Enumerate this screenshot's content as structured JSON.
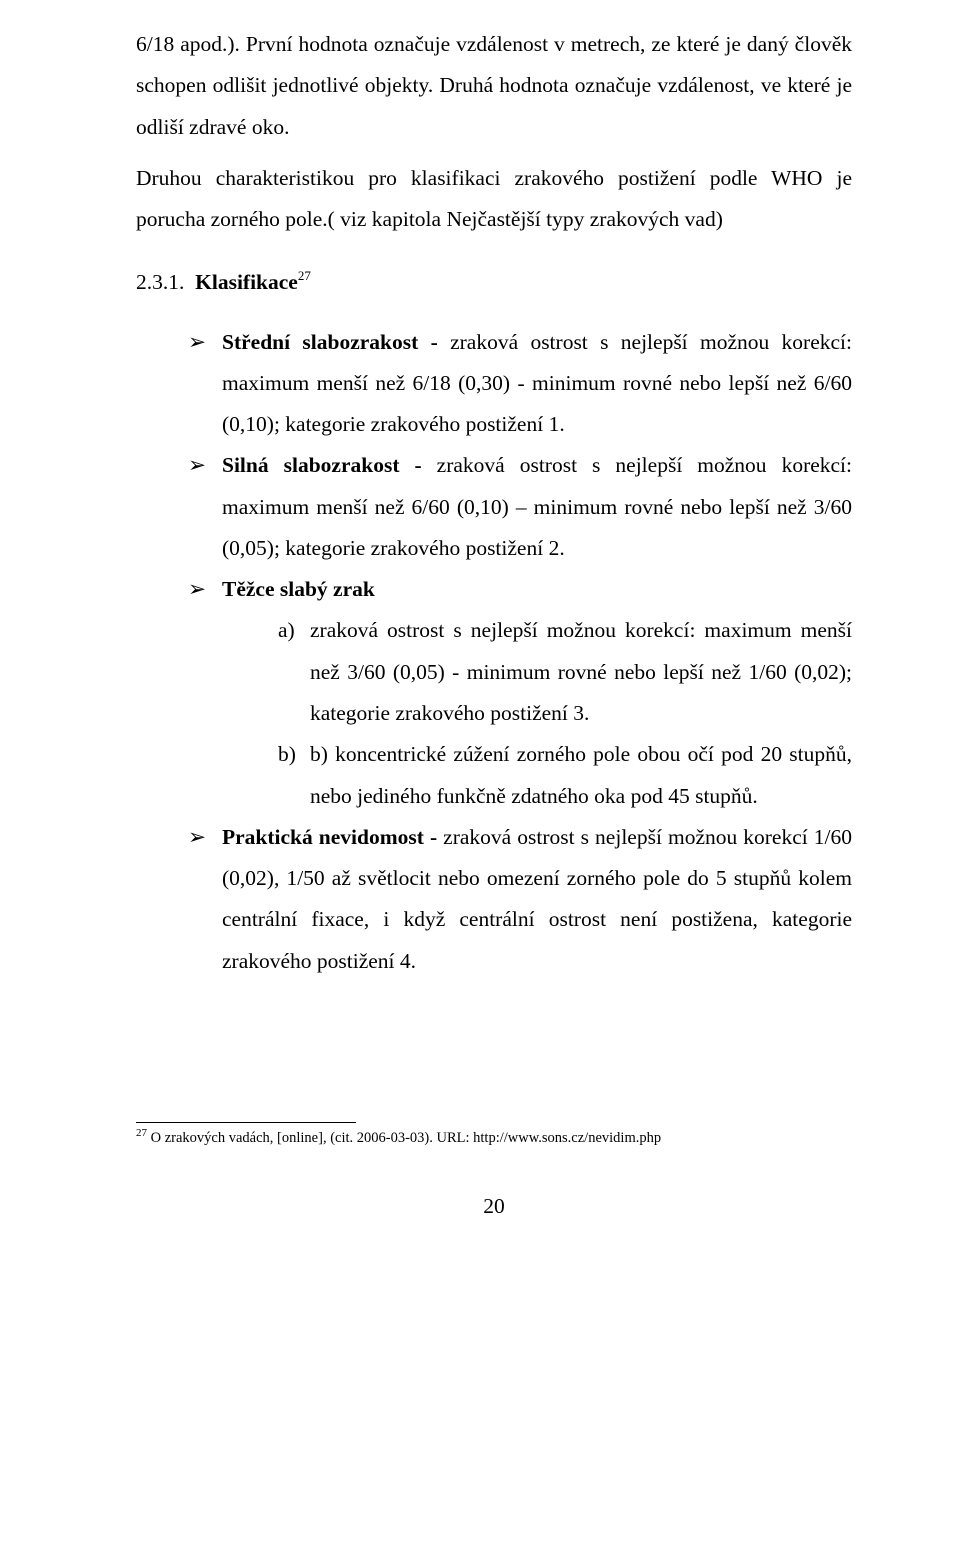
{
  "paragraphs": {
    "p1": "6/18 apod.). První hodnota označuje vzdálenost v metrech, ze které je daný člověk schopen odlišit jednotlivé objekty. Druhá hodnota označuje vzdálenost, ve které je odliší zdravé oko.",
    "p2": "Druhou charakteristikou pro klasifikaci zrakového postižení podle WHO je porucha zorného pole.( viz kapitola Nejčastější typy zrakových vad)"
  },
  "heading": {
    "number": "2.3.1.",
    "title": "Klasifikace",
    "sup": "27"
  },
  "list": {
    "item1": {
      "bold": "Střední slabozrakost -",
      "rest": " zraková ostrost s nejlepší možnou korekcí: maximum menší než 6/18 (0,30) - minimum rovné nebo lepší než 6/60 (0,10); kategorie zrakového postižení 1."
    },
    "item2": {
      "bold": "Silná slabozrakost -",
      "rest": " zraková ostrost s nejlepší možnou korekcí: maximum menší než 6/60 (0,10) – minimum rovné nebo lepší než 3/60 (0,05); kategorie zrakového postižení 2."
    },
    "item3": {
      "bold": "Těžce slabý zrak"
    },
    "sub_a": {
      "marker": "a)",
      "text": "zraková ostrost s nejlepší možnou korekcí: maximum menší než 3/60 (0,05) - minimum rovné nebo lepší než 1/60 (0,02); kategorie zrakového postižení 3."
    },
    "sub_b": {
      "marker": "b)",
      "text": "b) koncentrické zúžení zorného pole obou očí pod 20 stupňů, nebo jediného funkčně zdatného oka pod 45 stupňů."
    },
    "item4": {
      "bold": "Praktická nevidomost -",
      "rest": "  zraková ostrost s nejlepší možnou korekcí 1/60 (0,02), 1/50 až světlocit nebo omezení zorného pole do 5 stupňů kolem centrální fixace, i když centrální ostrost není postižena, kategorie zrakového postižení 4."
    }
  },
  "footnote": {
    "num": "27",
    "text": " O zrakových vadách, [online], (cit. 2006-03-03). URL: http://www.sons.cz/nevidim.php"
  },
  "pageNumber": "20"
}
